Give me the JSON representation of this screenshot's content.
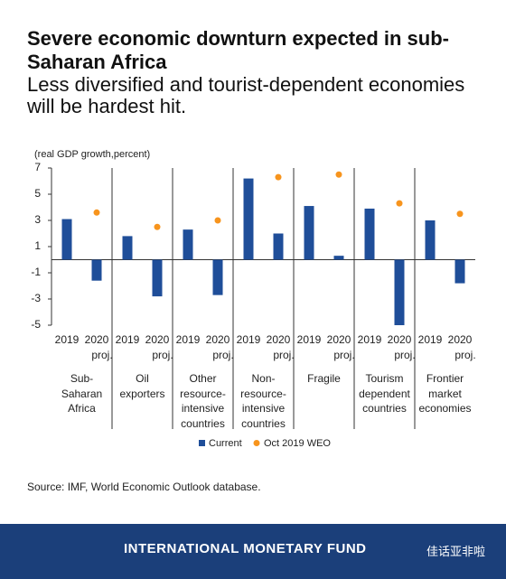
{
  "chart_data": {
    "type": "bar",
    "title": "Severe economic downturn expected in sub-Saharan Africa",
    "subtitle": "Less diversified and tourist-dependent economies will be hardest hit.",
    "y_label": "(real GDP growth,percent)",
    "categories": [
      "Sub-Saharan Africa",
      "Oil exporters",
      "Other resource-intensive countries",
      "Non-resource-intensive countries",
      "Fragile",
      "Tourism dependent countries",
      "Frontier market economies"
    ],
    "subcategories": [
      [
        "2019"
      ],
      [
        "2020",
        "proj."
      ]
    ],
    "series": [
      {
        "name": "Current",
        "color": "#1f4e99",
        "values": [
          [
            3.1,
            -1.6
          ],
          [
            1.8,
            -2.8
          ],
          [
            2.3,
            -2.7
          ],
          [
            6.2,
            2.0
          ],
          [
            4.1,
            0.3
          ],
          [
            3.9,
            -5.0
          ],
          [
            3.0,
            -1.8
          ]
        ]
      },
      {
        "name": "Oct 2019 WEO",
        "color": "#f7941d",
        "values": [
          3.6,
          2.5,
          3.0,
          6.3,
          6.5,
          4.3,
          3.5
        ]
      }
    ],
    "ylim": [
      -5,
      7
    ],
    "yticks": [
      7,
      5,
      3,
      1,
      -1,
      -3,
      -5
    ],
    "source": "Source: IMF, World Economic Outlook database."
  },
  "footer": {
    "org": "INTERNATIONAL MONETARY FUND",
    "watermark": "佳话亚非啦"
  }
}
